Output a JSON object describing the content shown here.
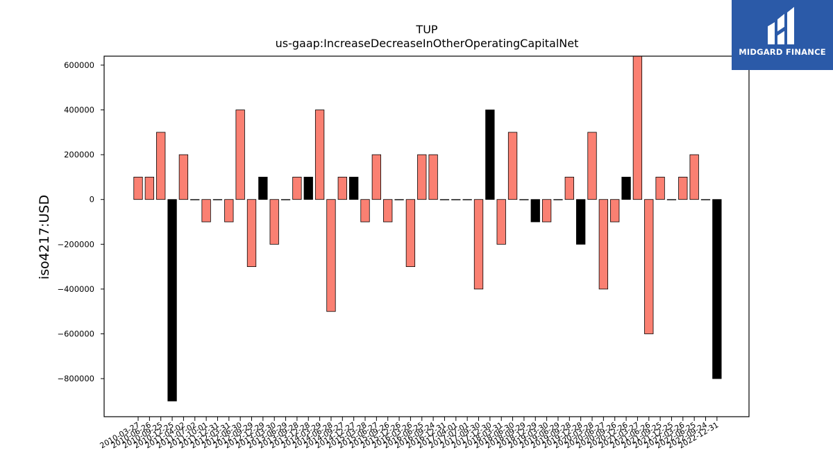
{
  "brand": {
    "name": "MIDGARD FINANCE"
  },
  "chart_data": {
    "type": "bar",
    "title": "TUP",
    "subtitle": "us-gaap:IncreaseDecreaseInOtherOperatingCapitalNet",
    "ylabel": "iso4217:USD",
    "ylim": [
      -970000,
      640000
    ],
    "yticks": [
      600000,
      400000,
      200000,
      0,
      -200000,
      -400000,
      -600000,
      -800000
    ],
    "ytick_labels": [
      "600000",
      "400000",
      "200000",
      "0",
      "−200000",
      "−400000",
      "−600000",
      "−800000"
    ],
    "colors": {
      "default": "#fa8072",
      "highlight": "#000000"
    },
    "grid": false,
    "categories": [
      "2010-03-27",
      "2010-06-26",
      "2010-09-25",
      "2010-12-25",
      "2011-04-02",
      "2011-07-02",
      "2011-10-01",
      "2011-12-31",
      "2012-03-31",
      "2012-06-30",
      "2012-09-29",
      "2012-12-29",
      "2013-03-30",
      "2013-06-29",
      "2013-09-28",
      "2013-12-28",
      "2014-03-29",
      "2014-06-28",
      "2014-09-27",
      "2014-12-27",
      "2015-03-28",
      "2015-06-27",
      "2015-09-26",
      "2015-12-26",
      "2016-03-26",
      "2016-06-25",
      "2016-09-24",
      "2016-12-31",
      "2017-04-01",
      "2017-07-01",
      "2017-09-30",
      "2017-12-30",
      "2018-03-31",
      "2018-06-30",
      "2018-09-29",
      "2018-12-29",
      "2019-03-30",
      "2019-06-29",
      "2019-09-28",
      "2019-12-28",
      "2020-03-28",
      "2020-06-27",
      "2020-09-26",
      "2020-12-26",
      "2021-03-27",
      "2021-06-26",
      "2021-09-25",
      "2021-12-25",
      "2022-03-26",
      "2022-06-25",
      "2022-09-24",
      "2022-12-31"
    ],
    "values": [
      100000,
      100000,
      300000,
      -900000,
      200000,
      0,
      -100000,
      0,
      -100000,
      400000,
      -300000,
      100000,
      -200000,
      0,
      100000,
      100000,
      400000,
      -500000,
      100000,
      100000,
      -100000,
      200000,
      -100000,
      0,
      -300000,
      200000,
      200000,
      0,
      0,
      0,
      -400000,
      400000,
      -200000,
      300000,
      0,
      -100000,
      -100000,
      0,
      100000,
      -200000,
      300000,
      -400000,
      -100000,
      100000,
      640000,
      -600000,
      100000,
      0,
      100000,
      200000,
      0,
      -800000
    ],
    "highlighted": [
      false,
      false,
      false,
      true,
      false,
      false,
      false,
      false,
      false,
      false,
      false,
      true,
      false,
      false,
      false,
      true,
      false,
      false,
      false,
      true,
      false,
      false,
      false,
      false,
      false,
      false,
      false,
      false,
      false,
      false,
      false,
      true,
      false,
      false,
      false,
      true,
      false,
      false,
      false,
      true,
      false,
      false,
      false,
      true,
      false,
      false,
      false,
      false,
      false,
      false,
      false,
      true
    ]
  }
}
